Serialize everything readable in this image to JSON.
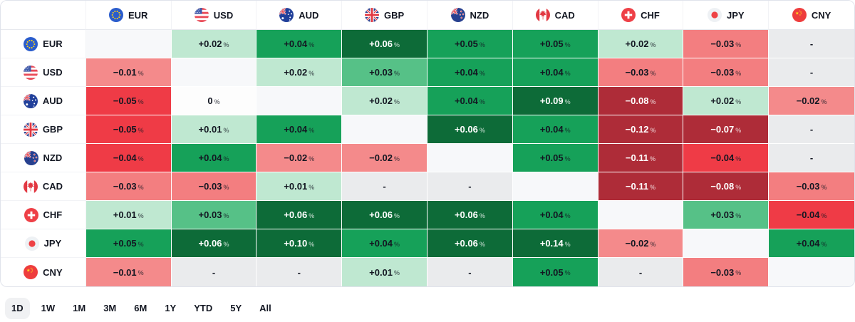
{
  "chart_data": {
    "type": "heatmap",
    "columns": [
      "EUR",
      "USD",
      "AUD",
      "GBP",
      "NZD",
      "CAD",
      "CHF",
      "JPY",
      "CNY"
    ],
    "rows": [
      {
        "base": "EUR",
        "values": [
          "",
          "+0.02",
          "+0.04",
          "+0.06",
          "+0.05",
          "+0.05",
          "+0.02",
          "−0.03",
          "-"
        ]
      },
      {
        "base": "USD",
        "values": [
          "−0.01",
          "",
          "+0.02",
          "+0.03",
          "+0.04",
          "+0.04",
          "−0.03",
          "−0.03",
          "-"
        ]
      },
      {
        "base": "AUD",
        "values": [
          "−0.05",
          "0",
          "",
          "+0.02",
          "+0.04",
          "+0.09",
          "−0.08",
          "+0.02",
          "−0.02"
        ]
      },
      {
        "base": "GBP",
        "values": [
          "−0.05",
          "+0.01",
          "+0.04",
          "",
          "+0.06",
          "+0.04",
          "−0.12",
          "−0.07",
          "-"
        ]
      },
      {
        "base": "NZD",
        "values": [
          "−0.04",
          "+0.04",
          "−0.02",
          "−0.02",
          "",
          "+0.05",
          "−0.11",
          "−0.04",
          "-"
        ]
      },
      {
        "base": "CAD",
        "values": [
          "−0.03",
          "−0.03",
          "+0.01",
          "-",
          "-",
          "",
          "−0.11",
          "−0.08",
          "−0.03"
        ]
      },
      {
        "base": "CHF",
        "values": [
          "+0.01",
          "+0.03",
          "+0.06",
          "+0.06",
          "+0.06",
          "+0.04",
          "",
          "+0.03",
          "−0.04"
        ]
      },
      {
        "base": "JPY",
        "values": [
          "+0.05",
          "+0.06",
          "+0.10",
          "+0.04",
          "+0.06",
          "+0.14",
          "−0.02",
          "",
          "+0.04"
        ]
      },
      {
        "base": "CNY",
        "values": [
          "−0.01",
          "-",
          "-",
          "+0.01",
          "-",
          "+0.05",
          "-",
          "−0.03",
          ""
        ]
      }
    ],
    "unit": "%",
    "na_symbol": "-",
    "legend_position": "none",
    "grid": "white-gaps"
  },
  "percent_suffix": "%",
  "icons": {
    "EUR": "flag-eur-icon",
    "USD": "flag-usd-icon",
    "AUD": "flag-aud-icon",
    "GBP": "flag-gbp-icon",
    "NZD": "flag-nzd-icon",
    "CAD": "flag-cad-icon",
    "CHF": "flag-chf-icon",
    "JPY": "flag-jpy-icon",
    "CNY": "flag-cny-icon"
  },
  "ranges": [
    {
      "label": "1D",
      "active": true
    },
    {
      "label": "1W",
      "active": false
    },
    {
      "label": "1M",
      "active": false
    },
    {
      "label": "3M",
      "active": false
    },
    {
      "label": "6M",
      "active": false
    },
    {
      "label": "1Y",
      "active": false
    },
    {
      "label": "YTD",
      "active": false
    },
    {
      "label": "5Y",
      "active": false
    },
    {
      "label": "All",
      "active": false
    }
  ],
  "palette": {
    "g1": {
      "bg": "#bfe8d1",
      "text": "#131722"
    },
    "g2": {
      "bg": "#56c187",
      "text": "#131722"
    },
    "g3": {
      "bg": "#16a159",
      "text": "#131722"
    },
    "g4": {
      "bg": "#0d6b38",
      "text": "#ffffff"
    },
    "r1": {
      "bg": "#f48a8b",
      "text": "#131722"
    },
    "r2": {
      "bg": "#f37e80",
      "text": "#131722"
    },
    "r3": {
      "bg": "#ef3b46",
      "text": "#131722"
    },
    "r4": {
      "bg": "#ae2c38",
      "text": "#ffffff"
    },
    "zero": {
      "bg": "#fdfdfd",
      "text": "#131722"
    },
    "na": {
      "bg": "#eaebed",
      "text": "#131722"
    },
    "diag": {
      "bg": "#f7f8fa",
      "text": "#131722"
    }
  }
}
